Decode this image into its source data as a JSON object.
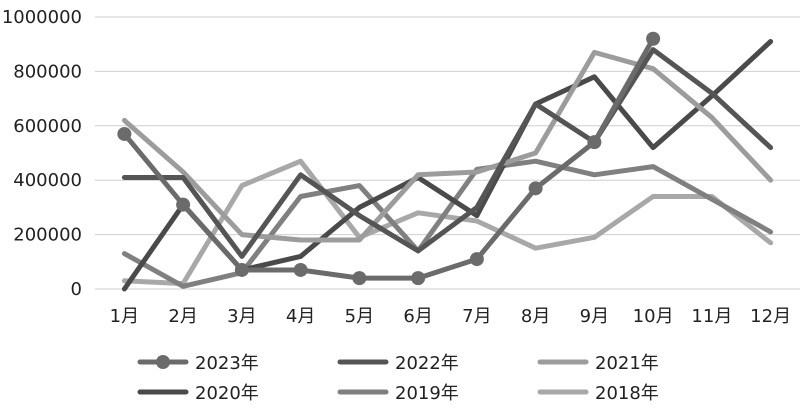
{
  "chart_data": {
    "type": "line",
    "categories": [
      "1月",
      "2月",
      "3月",
      "4月",
      "5月",
      "6月",
      "7月",
      "8月",
      "9月",
      "10月",
      "11月",
      "12月"
    ],
    "ylim": [
      0,
      1000000
    ],
    "yticks": [
      "0",
      "200000",
      "400000",
      "600000",
      "800000",
      "1000000"
    ],
    "grid": true,
    "legend_position": "bottom",
    "series": [
      {
        "name": "2023年",
        "color": "#6b6b6b",
        "marker": "circle",
        "values": [
          570000,
          310000,
          70000,
          70000,
          40000,
          40000,
          110000,
          370000,
          540000,
          920000,
          null,
          null
        ]
      },
      {
        "name": "2022年",
        "color": "#555555",
        "marker": "none",
        "values": [
          410000,
          410000,
          120000,
          420000,
          270000,
          140000,
          300000,
          680000,
          540000,
          880000,
          720000,
          520000
        ]
      },
      {
        "name": "2021年",
        "color": "#9c9c9c",
        "marker": "none",
        "values": [
          620000,
          430000,
          200000,
          180000,
          180000,
          420000,
          430000,
          500000,
          870000,
          810000,
          630000,
          400000
        ]
      },
      {
        "name": "2020年",
        "color": "#4a4a4a",
        "marker": "none",
        "values": [
          0,
          310000,
          70000,
          120000,
          300000,
          410000,
          270000,
          680000,
          780000,
          520000,
          710000,
          910000
        ]
      },
      {
        "name": "2019年",
        "color": "#808080",
        "marker": "none",
        "values": [
          130000,
          10000,
          60000,
          340000,
          380000,
          140000,
          440000,
          470000,
          420000,
          450000,
          330000,
          210000
        ]
      },
      {
        "name": "2018年",
        "color": "#a8a8a8",
        "marker": "none",
        "values": [
          30000,
          20000,
          380000,
          470000,
          190000,
          280000,
          250000,
          150000,
          190000,
          340000,
          340000,
          170000
        ]
      }
    ]
  }
}
